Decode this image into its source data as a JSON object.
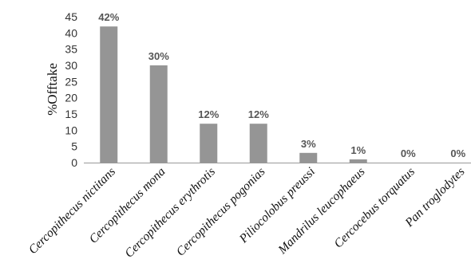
{
  "chart_data": {
    "type": "bar",
    "categories": [
      "Cercopithecus nictitans",
      "Cercopithecus mona",
      "Cercopithecus erythrotis",
      "Cercopithecus pogonias",
      "Piliocolobus preussi",
      "Mandrilus leucophaeus",
      "Cercocebus torquatus",
      "Pan troglodytes"
    ],
    "values": [
      42,
      30,
      12,
      12,
      3,
      1,
      0,
      0
    ],
    "data_labels": [
      "42%",
      "30%",
      "12%",
      "12%",
      "3%",
      "1%",
      "0%",
      "0%"
    ],
    "title": "",
    "xlabel": "",
    "ylabel": "%Offtake",
    "ylim": [
      0,
      45
    ],
    "yticks": [
      0,
      5,
      10,
      15,
      20,
      25,
      30,
      35,
      40,
      45
    ],
    "grid": false,
    "legend": "none",
    "bar_color": "#959595",
    "axis_color": "#999999"
  }
}
